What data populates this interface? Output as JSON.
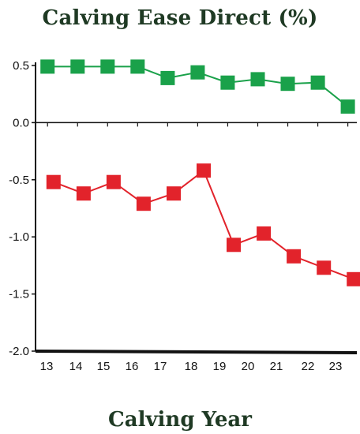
{
  "chart_data": {
    "type": "line",
    "title": "Calving Ease Direct (%)",
    "xlabel": "Calving Year",
    "ylabel": "",
    "ylim": [
      -2.0,
      0.5
    ],
    "yticks": [
      {
        "value": 0.5,
        "label": "0.5"
      },
      {
        "value": 0.0,
        "label": "0.0"
      },
      {
        "value": -0.5,
        "label": "-0.5"
      },
      {
        "value": -1.0,
        "label": "-1.0"
      },
      {
        "value": -1.5,
        "label": "-1.5"
      },
      {
        "value": -2.0,
        "label": "-2.0"
      }
    ],
    "xlim": [
      12.9,
      23.6
    ],
    "xticks": [
      "13",
      "14",
      "15",
      "16",
      "17",
      "18",
      "19",
      "20",
      "21",
      "22",
      "23"
    ],
    "grid": false,
    "legend": "none",
    "series": [
      {
        "color": "#1aa14a",
        "marker": "square",
        "x": [
          13.3,
          14.3,
          15.3,
          16.3,
          17.3,
          18.3,
          19.3,
          20.3,
          21.3,
          22.3,
          23.3
        ],
        "y": [
          0.49,
          0.49,
          0.49,
          0.49,
          0.39,
          0.44,
          0.35,
          0.38,
          0.34,
          0.35,
          0.14
        ]
      },
      {
        "color": "#e2232b",
        "marker": "square",
        "x": [
          13.5,
          14.5,
          15.5,
          16.5,
          17.5,
          18.5,
          19.5,
          20.5,
          21.5,
          22.5,
          23.5
        ],
        "y": [
          -0.52,
          -0.62,
          -0.52,
          -0.71,
          -0.62,
          -0.42,
          -1.07,
          -0.97,
          -1.17,
          -1.27,
          -1.37
        ]
      }
    ]
  }
}
